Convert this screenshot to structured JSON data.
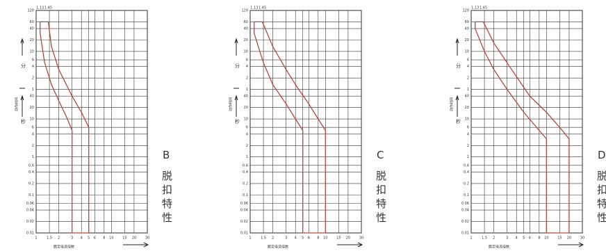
{
  "axes": {
    "top_labels": [
      1.13,
      1.45
    ],
    "minute_ticks": [
      120,
      60,
      40,
      20,
      10,
      6,
      4,
      2,
      1
    ],
    "second_ticks": [
      40,
      20,
      10,
      6,
      4,
      2,
      1,
      0.6,
      0.4,
      0.2,
      0.1,
      0.06,
      0.04,
      0.02,
      0.01
    ],
    "x_ticks": [
      1,
      1.5,
      2,
      3,
      4,
      5,
      6,
      8,
      10,
      15,
      20,
      30
    ],
    "minute_label": "分",
    "second_label": "秒",
    "y_title": "动作时间",
    "x_title": "额定电流倍数"
  },
  "panels": [
    {
      "label": "B",
      "caption": "脱扣特性",
      "boundary": [
        [
          1.13,
          3600
        ],
        [
          1.13,
          1800
        ],
        [
          1.3,
          300
        ],
        [
          1.6,
          80
        ],
        [
          2,
          30
        ],
        [
          2.5,
          12
        ],
        [
          3,
          5
        ],
        [
          3,
          0.01
        ],
        [
          5,
          0.01
        ],
        [
          5,
          6
        ],
        [
          4,
          15
        ],
        [
          3,
          40
        ],
        [
          2,
          200
        ],
        [
          1.6,
          800
        ],
        [
          1.45,
          3600
        ]
      ]
    },
    {
      "label": "C",
      "caption": "脱扣特性",
      "boundary": [
        [
          1.13,
          3600
        ],
        [
          1.13,
          1800
        ],
        [
          1.5,
          300
        ],
        [
          2,
          80
        ],
        [
          3,
          25
        ],
        [
          4,
          10
        ],
        [
          5,
          5
        ],
        [
          5,
          0.01
        ],
        [
          10,
          0.01
        ],
        [
          10,
          5
        ],
        [
          8,
          10
        ],
        [
          6,
          25
        ],
        [
          4,
          80
        ],
        [
          3,
          200
        ],
        [
          2,
          800
        ],
        [
          1.45,
          3600
        ]
      ]
    },
    {
      "label": "D",
      "caption": "脱扣特性",
      "boundary": [
        [
          1.13,
          3600
        ],
        [
          1.13,
          2400
        ],
        [
          1.5,
          600
        ],
        [
          2,
          200
        ],
        [
          3,
          60
        ],
        [
          5,
          15
        ],
        [
          8,
          5
        ],
        [
          10,
          3
        ],
        [
          10,
          0.01
        ],
        [
          20,
          0.01
        ],
        [
          20,
          3
        ],
        [
          15,
          6
        ],
        [
          10,
          15
        ],
        [
          6,
          40
        ],
        [
          3,
          300
        ],
        [
          2,
          1000
        ],
        [
          1.45,
          3600
        ]
      ]
    }
  ]
}
